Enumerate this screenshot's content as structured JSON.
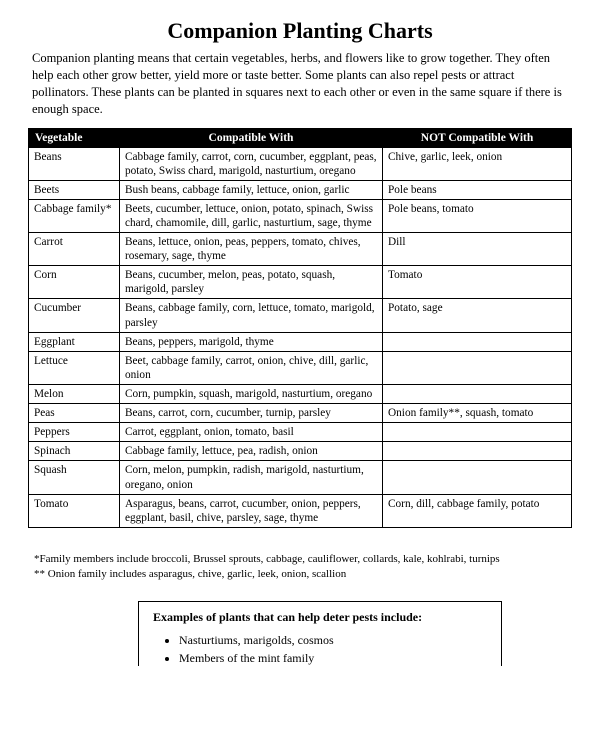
{
  "title": "Companion Planting Charts",
  "intro": "Companion planting means that certain vegetables, herbs, and flowers like to grow together. They often help each other grow better, yield more or taste better. Some plants can also repel pests or attract pollinators. These plants can be planted in squares next to each other or even in the same square if there is enough space.",
  "columns": {
    "veg": "Vegetable",
    "comp": "Compatible With",
    "not": "NOT Compatible With"
  },
  "rows": [
    {
      "veg": "Beans",
      "comp": "Cabbage family, carrot, corn, cucumber, eggplant, peas, potato, Swiss chard, marigold, nasturtium, oregano",
      "not": "Chive, garlic, leek, onion"
    },
    {
      "veg": "Beets",
      "comp": "Bush beans, cabbage family, lettuce, onion, garlic",
      "not": "Pole beans"
    },
    {
      "veg": "Cabbage family*",
      "comp": "Beets, cucumber, lettuce, onion, potato, spinach, Swiss chard, chamomile, dill, garlic, nasturtium, sage, thyme",
      "not": "Pole beans, tomato"
    },
    {
      "veg": "Carrot",
      "comp": "Beans, lettuce, onion, peas, peppers, tomato, chives, rosemary, sage, thyme",
      "not": "Dill"
    },
    {
      "veg": "Corn",
      "comp": "Beans, cucumber, melon, peas, potato, squash, marigold, parsley",
      "not": "Tomato"
    },
    {
      "veg": "Cucumber",
      "comp": "Beans, cabbage family, corn, lettuce, tomato, marigold, parsley",
      "not": "Potato, sage"
    },
    {
      "veg": "Eggplant",
      "comp": "Beans, peppers, marigold, thyme",
      "not": ""
    },
    {
      "veg": "Lettuce",
      "comp": "Beet, cabbage family, carrot, onion, chive, dill, garlic, onion",
      "not": ""
    },
    {
      "veg": "Melon",
      "comp": "Corn, pumpkin, squash, marigold, nasturtium, oregano",
      "not": ""
    },
    {
      "veg": "Peas",
      "comp": "Beans, carrot, corn, cucumber, turnip, parsley",
      "not": "Onion family**, squash, tomato"
    },
    {
      "veg": "Peppers",
      "comp": "Carrot, eggplant, onion, tomato, basil",
      "not": ""
    },
    {
      "veg": "Spinach",
      "comp": "Cabbage family, lettuce, pea, radish, onion",
      "not": ""
    },
    {
      "veg": "Squash",
      "comp": "Corn, melon, pumpkin, radish, marigold, nasturtium, oregano, onion",
      "not": ""
    },
    {
      "veg": "Tomato",
      "comp": "Asparagus, beans, carrot, cucumber, onion, peppers, eggplant, basil, chive, parsley, sage, thyme",
      "not": "Corn, dill, cabbage family, potato"
    }
  ],
  "footnote1": "*Family members include broccoli, Brussel sprouts, cabbage, cauliflower, collards, kale, kohlrabi, turnips",
  "footnote2": "** Onion family includes asparagus, chive, garlic, leek, onion, scallion",
  "box": {
    "title": "Examples of plants that can help deter pests include:",
    "items": [
      "Nasturtiums, marigolds, cosmos",
      "Members of the mint family"
    ]
  }
}
